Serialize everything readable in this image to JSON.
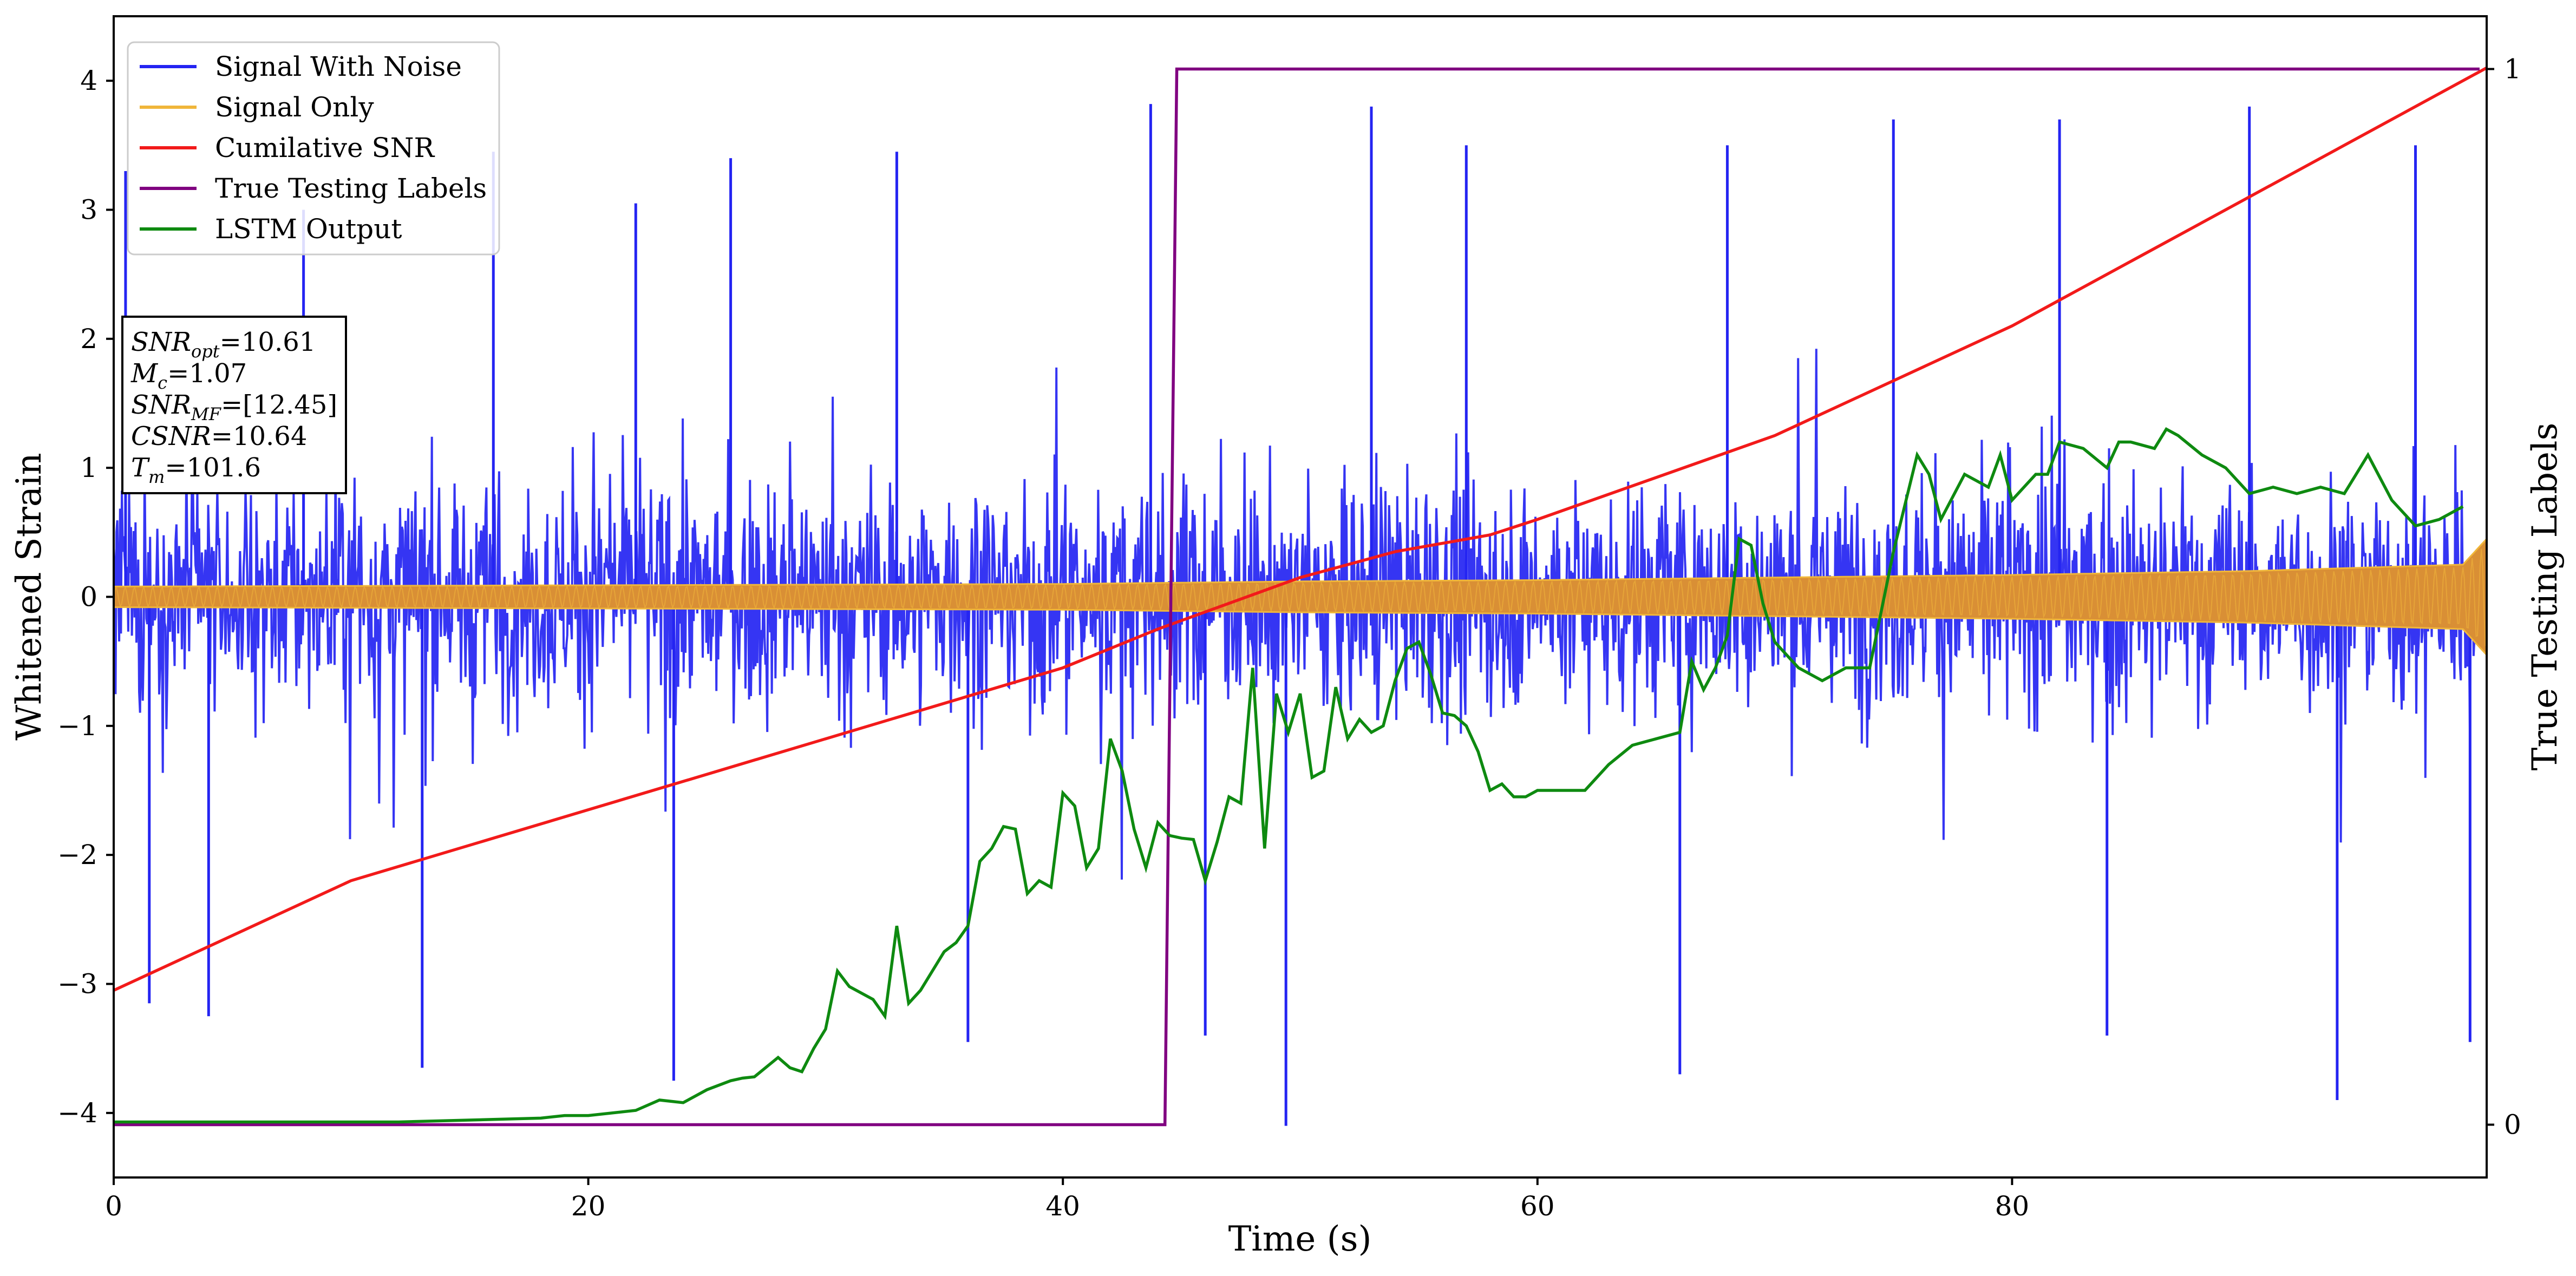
{
  "chart_data": {
    "type": "line",
    "xlabel": "Time (s)",
    "ylabel": "Whitened Strain",
    "y2label": "True Testing Labels",
    "xlim": [
      0,
      100
    ],
    "ylim": [
      -4.5,
      4.5
    ],
    "y2lim": [
      -0.05,
      1.05
    ],
    "xticks": [
      0,
      20,
      40,
      60,
      80
    ],
    "yticks": [
      -4,
      -3,
      -2,
      -1,
      0,
      1,
      2,
      3,
      4
    ],
    "y2ticks": [
      0,
      1
    ],
    "grid": false,
    "legend_placement": "top-left",
    "series": [
      {
        "name": "Signal With Noise",
        "color": "#2424f2",
        "axis": "left",
        "style": "dense noise band",
        "sample_extremes": {
          "x": [
            0.5,
            1.5,
            4.0,
            8.0,
            13.0,
            16.0,
            22.0,
            23.6,
            26.0,
            33.0,
            36.0,
            43.7,
            46.0,
            49.4,
            53.0,
            57.0,
            66.0,
            68.0,
            75.0,
            82.0,
            84.0,
            90.0,
            93.7,
            97.0,
            99.3
          ],
          "y": [
            3.3,
            -3.15,
            -3.25,
            3.0,
            -3.65,
            3.45,
            3.05,
            -3.75,
            3.4,
            3.45,
            -3.45,
            3.82,
            -3.4,
            -4.1,
            3.8,
            3.5,
            -3.7,
            3.5,
            3.7,
            3.7,
            -3.4,
            3.8,
            -3.9,
            3.5,
            -3.45
          ]
        }
      },
      {
        "name": "Signal Only",
        "color": "#f0b63a",
        "axis": "left",
        "style": "chirp envelope",
        "x": [
          0,
          20,
          40,
          50,
          60,
          70,
          80,
          90,
          99,
          100
        ],
        "amplitude": [
          0.08,
          0.09,
          0.1,
          0.12,
          0.13,
          0.15,
          0.17,
          0.2,
          0.25,
          0.45
        ]
      },
      {
        "name": "Cumilative SNR",
        "color": "#f21a1a",
        "axis": "left",
        "x": [
          0,
          10,
          20,
          30,
          40,
          44,
          50,
          54,
          58,
          60,
          70,
          80,
          90,
          100
        ],
        "values": [
          -3.05,
          -2.2,
          -1.65,
          -1.1,
          -0.55,
          -0.25,
          0.15,
          0.35,
          0.48,
          0.6,
          1.25,
          2.1,
          3.1,
          4.1
        ]
      },
      {
        "name": "True Testing Labels",
        "color": "#800080",
        "axis": "right",
        "x": [
          0,
          44.3,
          44.8,
          99.7
        ],
        "values": [
          0,
          0,
          1,
          1
        ]
      },
      {
        "name": "LSTM Output",
        "color": "#0e8a10",
        "axis": "left",
        "x": [
          0,
          5,
          10,
          12,
          14,
          16,
          18,
          19,
          20,
          22,
          23,
          24,
          25,
          26,
          26.5,
          27,
          28,
          28.5,
          29,
          29.5,
          30,
          30.5,
          31,
          32,
          32.5,
          33,
          33.5,
          34,
          35,
          35.5,
          36,
          36.5,
          37,
          37.5,
          38,
          38.5,
          39,
          39.5,
          40,
          40.5,
          41,
          41.5,
          42,
          42.5,
          43,
          43.5,
          44,
          44.5,
          45,
          45.5,
          46,
          46.5,
          47,
          47.5,
          48,
          48.5,
          49,
          49.5,
          50,
          50.5,
          51,
          51.5,
          52,
          52.5,
          53,
          53.5,
          54,
          54.5,
          55,
          55.5,
          56,
          56.5,
          57,
          57.5,
          58,
          58.5,
          59,
          59.5,
          60,
          61,
          62,
          63,
          64,
          65,
          66,
          66.5,
          67,
          67.5,
          68,
          68.5,
          69,
          69.5,
          70,
          71,
          72,
          73,
          74,
          75,
          76,
          76.5,
          77,
          78,
          79,
          79.5,
          80,
          81,
          81.5,
          82,
          83,
          84,
          84.5,
          85,
          86,
          86.5,
          87,
          88,
          89,
          90,
          91,
          92,
          93,
          94,
          94.5,
          95,
          96,
          97,
          98,
          99
        ],
        "values": [
          -4.07,
          -4.07,
          -4.07,
          -4.07,
          -4.06,
          -4.05,
          -4.04,
          -4.02,
          -4.02,
          -3.98,
          -3.9,
          -3.92,
          -3.82,
          -3.75,
          -3.73,
          -3.72,
          -3.57,
          -3.65,
          -3.68,
          -3.5,
          -3.35,
          -2.9,
          -3.02,
          -3.12,
          -3.25,
          -2.55,
          -3.15,
          -3.05,
          -2.75,
          -2.68,
          -2.55,
          -2.05,
          -1.95,
          -1.78,
          -1.8,
          -2.3,
          -2.2,
          -2.25,
          -1.52,
          -1.62,
          -2.1,
          -1.95,
          -1.1,
          -1.35,
          -1.8,
          -2.1,
          -1.75,
          -1.85,
          -1.87,
          -1.88,
          -2.2,
          -1.9,
          -1.55,
          -1.6,
          -0.55,
          -1.95,
          -0.75,
          -1.05,
          -0.75,
          -1.4,
          -1.35,
          -0.7,
          -1.1,
          -0.95,
          -1.05,
          -1.0,
          -0.65,
          -0.4,
          -0.35,
          -0.6,
          -0.9,
          -0.92,
          -1.0,
          -1.2,
          -1.5,
          -1.45,
          -1.55,
          -1.55,
          -1.5,
          -1.5,
          -1.5,
          -1.3,
          -1.15,
          -1.1,
          -1.05,
          -0.5,
          -0.72,
          -0.55,
          -0.3,
          0.45,
          0.4,
          -0.05,
          -0.35,
          -0.55,
          -0.65,
          -0.55,
          -0.55,
          0.35,
          1.1,
          0.95,
          0.6,
          0.95,
          0.85,
          1.1,
          0.75,
          0.95,
          0.95,
          1.2,
          1.15,
          1.0,
          1.2,
          1.2,
          1.15,
          1.3,
          1.25,
          1.1,
          1.0,
          0.8,
          0.85,
          0.8,
          0.85,
          0.8,
          0.95,
          1.1,
          0.75,
          0.55,
          0.6,
          0.7
        ]
      }
    ],
    "annotation": {
      "lines": [
        {
          "symbol": "SNR",
          "sub": "opt",
          "value": "=10.61"
        },
        {
          "symbol": "M",
          "sub": "c",
          "value": "=1.07"
        },
        {
          "symbol": "SNR",
          "sub": "MF",
          "value": "=[12.45]"
        },
        {
          "symbol": "CSNR",
          "sub": "",
          "value": "=10.64"
        },
        {
          "symbol": "T",
          "sub": "m",
          "value": "=101.6"
        }
      ]
    }
  }
}
